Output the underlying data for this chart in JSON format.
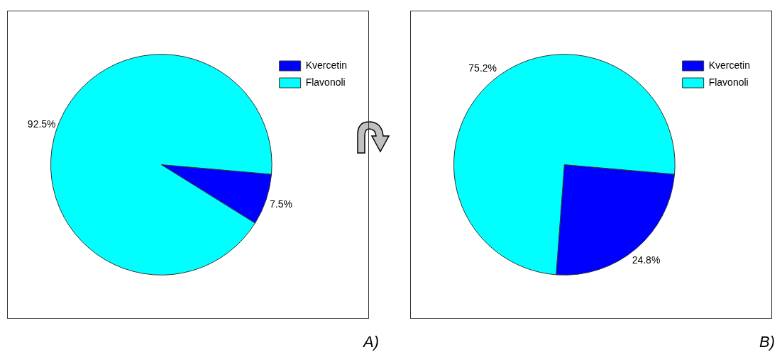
{
  "chart_data": [
    {
      "type": "pie",
      "categories": [
        "Kvercetin",
        "Flavonoli"
      ],
      "values": [
        7.5,
        92.5
      ],
      "colors": [
        "#0000ff",
        "#00ffff"
      ],
      "value_labels": [
        "7.5%",
        "92.5%"
      ],
      "legend": "top right",
      "annotations": [
        "A)"
      ]
    },
    {
      "type": "pie",
      "categories": [
        "Kvercetin",
        "Flavonoli"
      ],
      "values": [
        24.8,
        75.2
      ],
      "colors": [
        "#0000ff",
        "#00ffff"
      ],
      "value_labels": [
        "24.8%",
        "75.2%"
      ],
      "legend": "top right",
      "annotations": [
        "B)"
      ]
    }
  ]
}
